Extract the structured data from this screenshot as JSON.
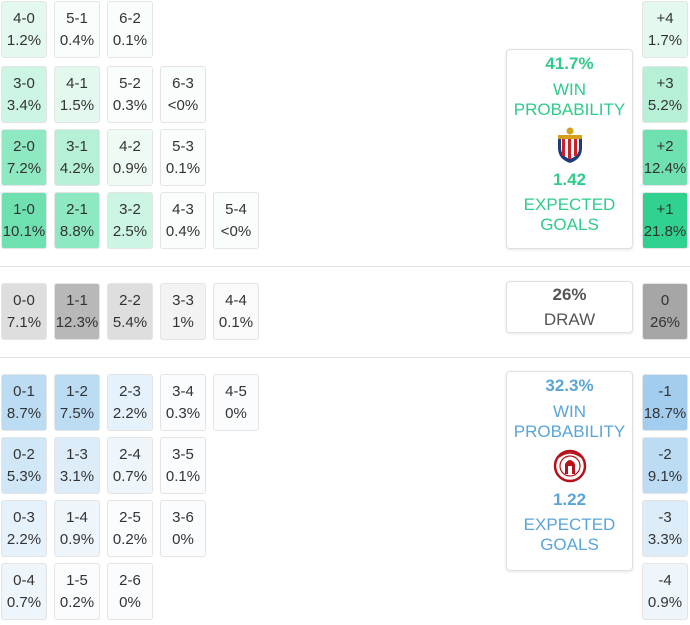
{
  "home": {
    "rows": [
      [
        {
          "score": "4-0",
          "pct": "1.2%"
        },
        {
          "score": "5-1",
          "pct": "0.4%"
        },
        {
          "score": "6-2",
          "pct": "0.1%"
        }
      ],
      [
        {
          "score": "3-0",
          "pct": "3.4%"
        },
        {
          "score": "4-1",
          "pct": "1.5%"
        },
        {
          "score": "5-2",
          "pct": "0.3%"
        },
        {
          "score": "6-3",
          "pct": "<0%"
        }
      ],
      [
        {
          "score": "2-0",
          "pct": "7.2%"
        },
        {
          "score": "3-1",
          "pct": "4.2%"
        },
        {
          "score": "4-2",
          "pct": "0.9%"
        },
        {
          "score": "5-3",
          "pct": "0.1%"
        }
      ],
      [
        {
          "score": "1-0",
          "pct": "10.1%"
        },
        {
          "score": "2-1",
          "pct": "8.8%"
        },
        {
          "score": "3-2",
          "pct": "2.5%"
        },
        {
          "score": "4-3",
          "pct": "0.4%"
        },
        {
          "score": "5-4",
          "pct": "<0%"
        }
      ]
    ],
    "margins": [
      {
        "margin": "+4",
        "pct": "1.7%"
      },
      {
        "margin": "+3",
        "pct": "5.2%"
      },
      {
        "margin": "+2",
        "pct": "12.4%"
      },
      {
        "margin": "+1",
        "pct": "21.8%"
      }
    ],
    "win_probability": "41.7%",
    "win_label_1": "WIN",
    "win_label_2": "PROBABILITY",
    "expected_goals": "1.42",
    "xg_label_1": "EXPECTED",
    "xg_label_2": "GOALS",
    "crest_icon": "chivas-crest-icon",
    "accent_color": "#2ecc8a"
  },
  "draw": {
    "row": [
      {
        "score": "0-0",
        "pct": "7.1%"
      },
      {
        "score": "1-1",
        "pct": "12.3%"
      },
      {
        "score": "2-2",
        "pct": "5.4%"
      },
      {
        "score": "3-3",
        "pct": "1%"
      },
      {
        "score": "4-4",
        "pct": "0.1%"
      }
    ],
    "margin": {
      "margin": "0",
      "pct": "26%"
    },
    "probability": "26%",
    "label": "DRAW",
    "accent_color": "#555555"
  },
  "away": {
    "rows": [
      [
        {
          "score": "0-1",
          "pct": "8.7%"
        },
        {
          "score": "1-2",
          "pct": "7.5%"
        },
        {
          "score": "2-3",
          "pct": "2.2%"
        },
        {
          "score": "3-4",
          "pct": "0.3%"
        },
        {
          "score": "4-5",
          "pct": "0%"
        }
      ],
      [
        {
          "score": "0-2",
          "pct": "5.3%"
        },
        {
          "score": "1-3",
          "pct": "3.1%"
        },
        {
          "score": "2-4",
          "pct": "0.7%"
        },
        {
          "score": "3-5",
          "pct": "0.1%"
        }
      ],
      [
        {
          "score": "0-3",
          "pct": "2.2%"
        },
        {
          "score": "1-4",
          "pct": "0.9%"
        },
        {
          "score": "2-5",
          "pct": "0.2%"
        },
        {
          "score": "3-6",
          "pct": "0%"
        }
      ],
      [
        {
          "score": "0-4",
          "pct": "0.7%"
        },
        {
          "score": "1-5",
          "pct": "0.2%"
        },
        {
          "score": "2-6",
          "pct": "0%"
        }
      ]
    ],
    "margins": [
      {
        "margin": "-1",
        "pct": "18.7%"
      },
      {
        "margin": "-2",
        "pct": "9.1%"
      },
      {
        "margin": "-3",
        "pct": "3.3%"
      },
      {
        "margin": "-4",
        "pct": "0.9%"
      }
    ],
    "win_probability": "32.3%",
    "win_label_1": "WIN",
    "win_label_2": "PROBABILITY",
    "expected_goals": "1.22",
    "xg_label_1": "EXPECTED",
    "xg_label_2": "GOALS",
    "crest_icon": "atletico-san-luis-crest-icon",
    "accent_color": "#5aa5d8"
  }
}
